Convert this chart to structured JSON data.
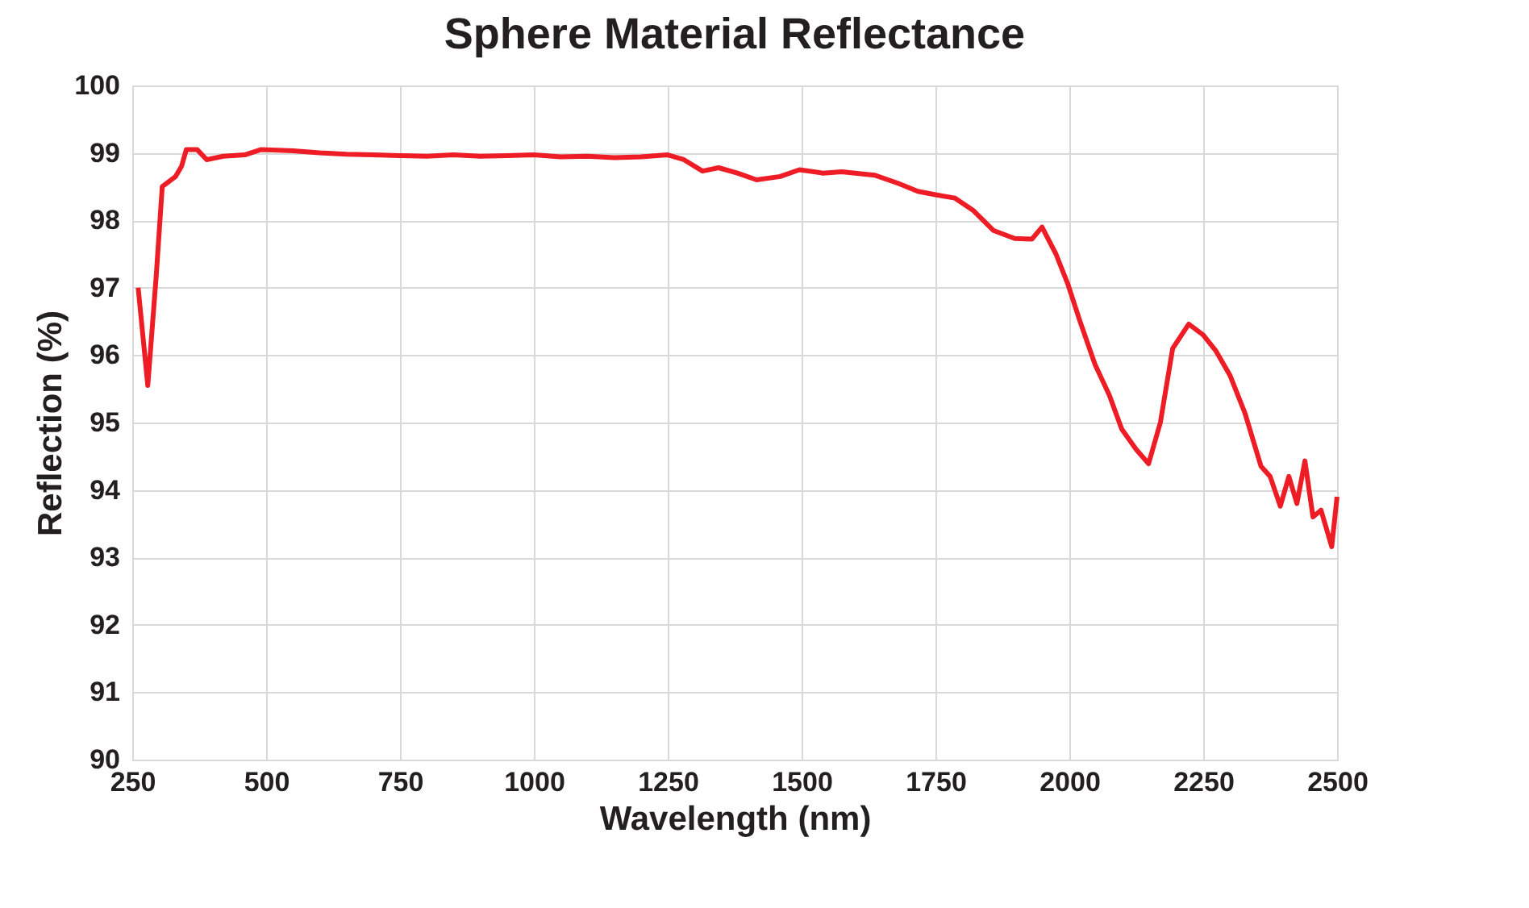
{
  "chart_data": {
    "type": "line",
    "title": "Sphere Material Reflectance",
    "xlabel": "Wavelength (nm)",
    "ylabel": "Reflection (%)",
    "xlim": [
      250,
      2500
    ],
    "xticks": [
      250,
      500,
      750,
      1000,
      1250,
      1500,
      1750,
      2000,
      2250,
      2500
    ],
    "ylim": [
      90,
      100
    ],
    "yticks": [
      90,
      91,
      92,
      93,
      94,
      95,
      96,
      97,
      98,
      99,
      100
    ],
    "grid": true,
    "marker": "none",
    "line_style": "solid",
    "series": [
      {
        "color": "#ee1c25",
        "x": [
          261,
          279,
          295,
          306,
          331,
          342,
          351,
          371,
          389,
          420,
          460,
          491,
          550,
          600,
          650,
          700,
          750,
          800,
          850,
          900,
          950,
          1000,
          1050,
          1100,
          1150,
          1200,
          1250,
          1280,
          1315,
          1345,
          1380,
          1416,
          1460,
          1496,
          1540,
          1575,
          1636,
          1680,
          1717,
          1750,
          1786,
          1820,
          1858,
          1898,
          1930,
          1949,
          1975,
          1997,
          2020,
          2048,
          2075,
          2098,
          2125,
          2148,
          2170,
          2193,
          2223,
          2250,
          2274,
          2300,
          2328,
          2358,
          2375,
          2394,
          2410,
          2425,
          2440,
          2455,
          2470,
          2490,
          2500
        ],
        "values": [
          97.0,
          95.55,
          97.2,
          98.5,
          98.65,
          98.8,
          99.05,
          99.05,
          98.9,
          98.95,
          98.97,
          99.05,
          99.03,
          99.0,
          98.98,
          98.97,
          98.96,
          98.95,
          98.97,
          98.95,
          98.96,
          98.97,
          98.94,
          98.95,
          98.93,
          98.94,
          98.97,
          98.9,
          98.73,
          98.78,
          98.7,
          98.6,
          98.65,
          98.75,
          98.7,
          98.72,
          98.67,
          98.55,
          98.43,
          98.38,
          98.33,
          98.15,
          97.85,
          97.73,
          97.72,
          97.9,
          97.5,
          97.06,
          96.5,
          95.86,
          95.4,
          94.9,
          94.6,
          94.39,
          95.0,
          96.1,
          96.46,
          96.3,
          96.06,
          95.7,
          95.14,
          94.35,
          94.2,
          93.76,
          94.2,
          93.8,
          94.43,
          93.6,
          93.7,
          93.16,
          93.9
        ]
      }
    ]
  }
}
